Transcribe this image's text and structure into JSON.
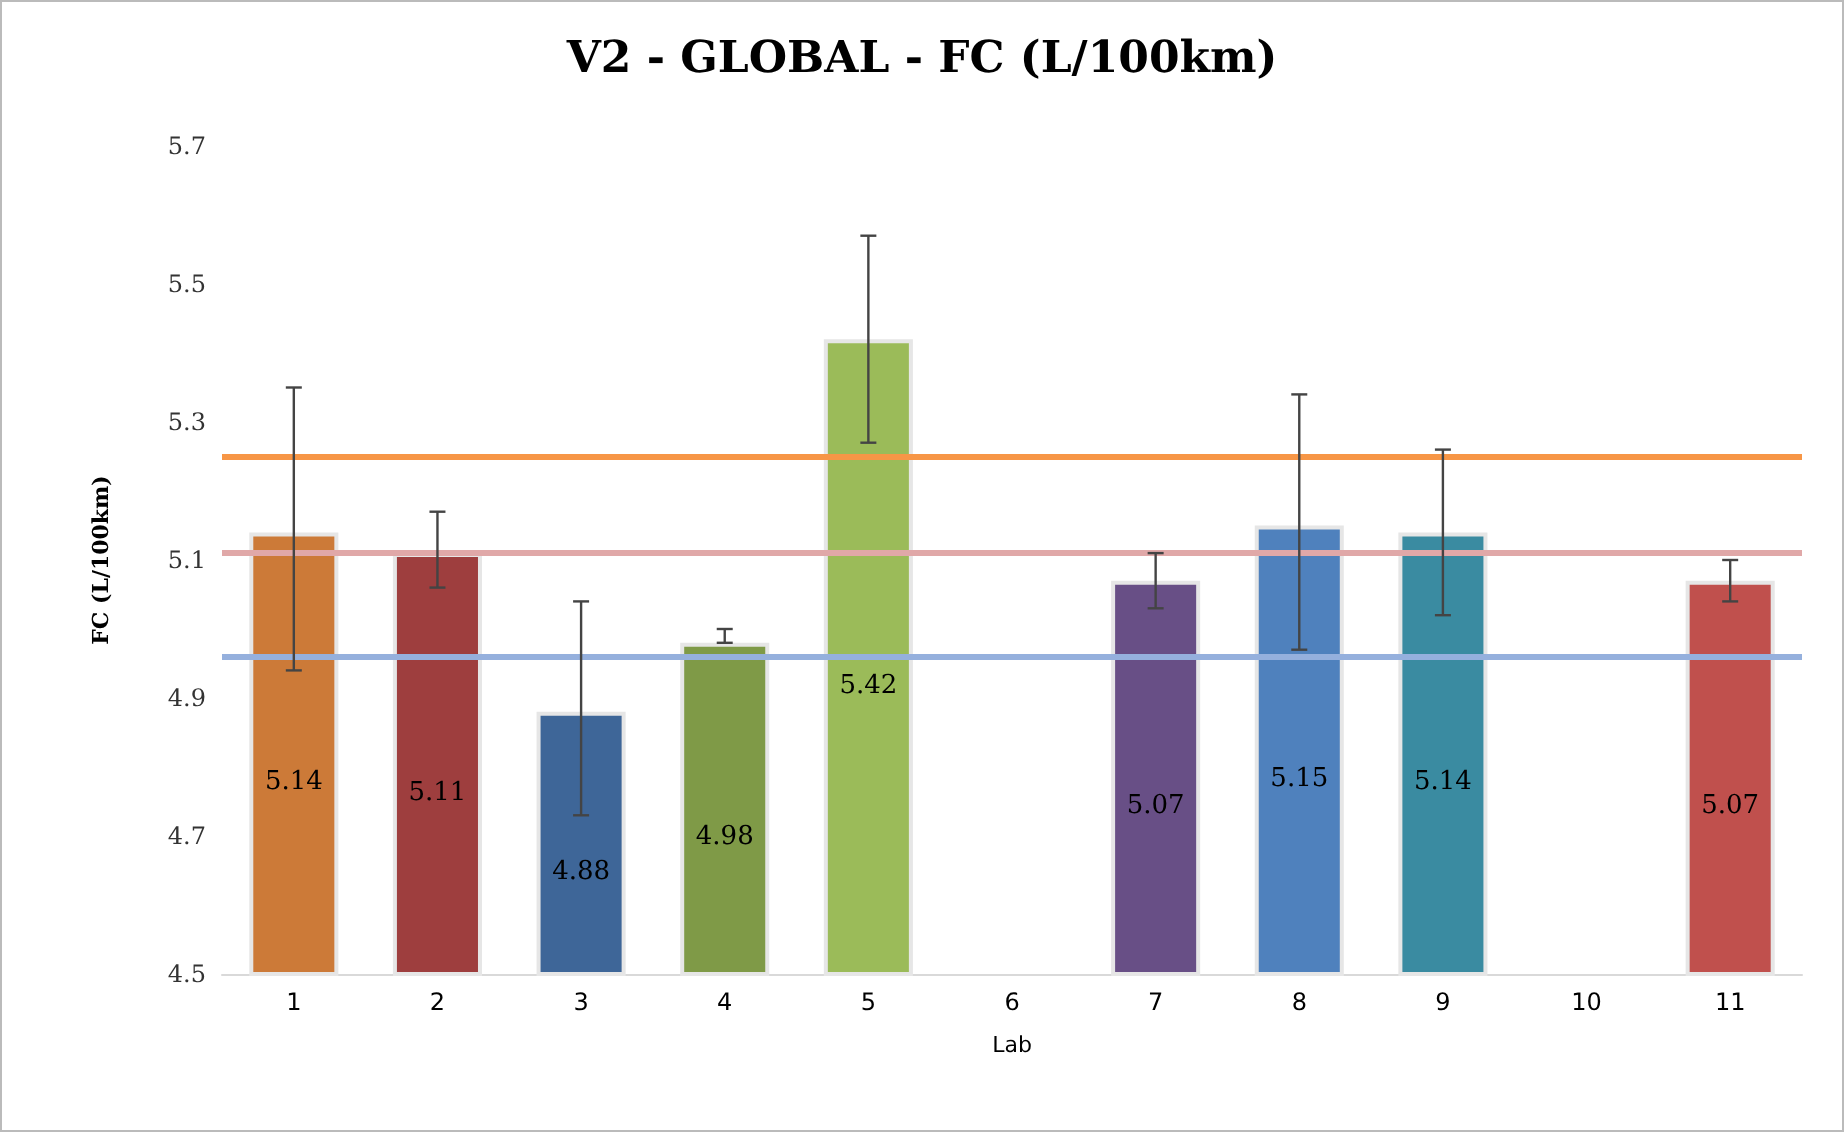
{
  "chart_data": {
    "type": "bar",
    "title": "V2 - GLOBAL - FC (L/100km)",
    "xlabel": "Lab",
    "ylabel": "FC (L/100km)",
    "categories": [
      "1",
      "2",
      "3",
      "4",
      "5",
      "6",
      "7",
      "8",
      "9",
      "10",
      "11"
    ],
    "values": [
      5.14,
      5.11,
      4.88,
      4.98,
      5.42,
      null,
      5.07,
      5.15,
      5.14,
      null,
      5.07
    ],
    "colors": [
      "#cc7a38",
      "#9e3e3e",
      "#3e6698",
      "#7f9a47",
      "#9bbb59",
      "#888888",
      "#684f86",
      "#4f81bd",
      "#3a8ba1",
      "#888888",
      "#c0504d"
    ],
    "errors": [
      [
        4.94,
        5.35
      ],
      [
        5.06,
        5.17
      ],
      [
        4.73,
        5.04
      ],
      [
        4.98,
        5.0
      ],
      [
        5.27,
        5.57
      ],
      null,
      [
        5.03,
        5.11
      ],
      [
        4.97,
        5.34
      ],
      [
        5.02,
        5.26
      ],
      null,
      [
        5.04,
        5.1
      ]
    ],
    "data_labels": true,
    "ylim": [
      4.5,
      5.7
    ],
    "yticks": [
      4.5,
      4.7,
      4.9,
      5.1,
      5.3,
      5.5,
      5.7
    ],
    "ref_lines": [
      {
        "axis": "y",
        "value": 5.25,
        "color": "#f79646"
      },
      {
        "axis": "y",
        "value": 5.11,
        "color": "#e0a8a8"
      },
      {
        "axis": "y",
        "value": 4.96,
        "color": "#95b0dd"
      }
    ]
  }
}
